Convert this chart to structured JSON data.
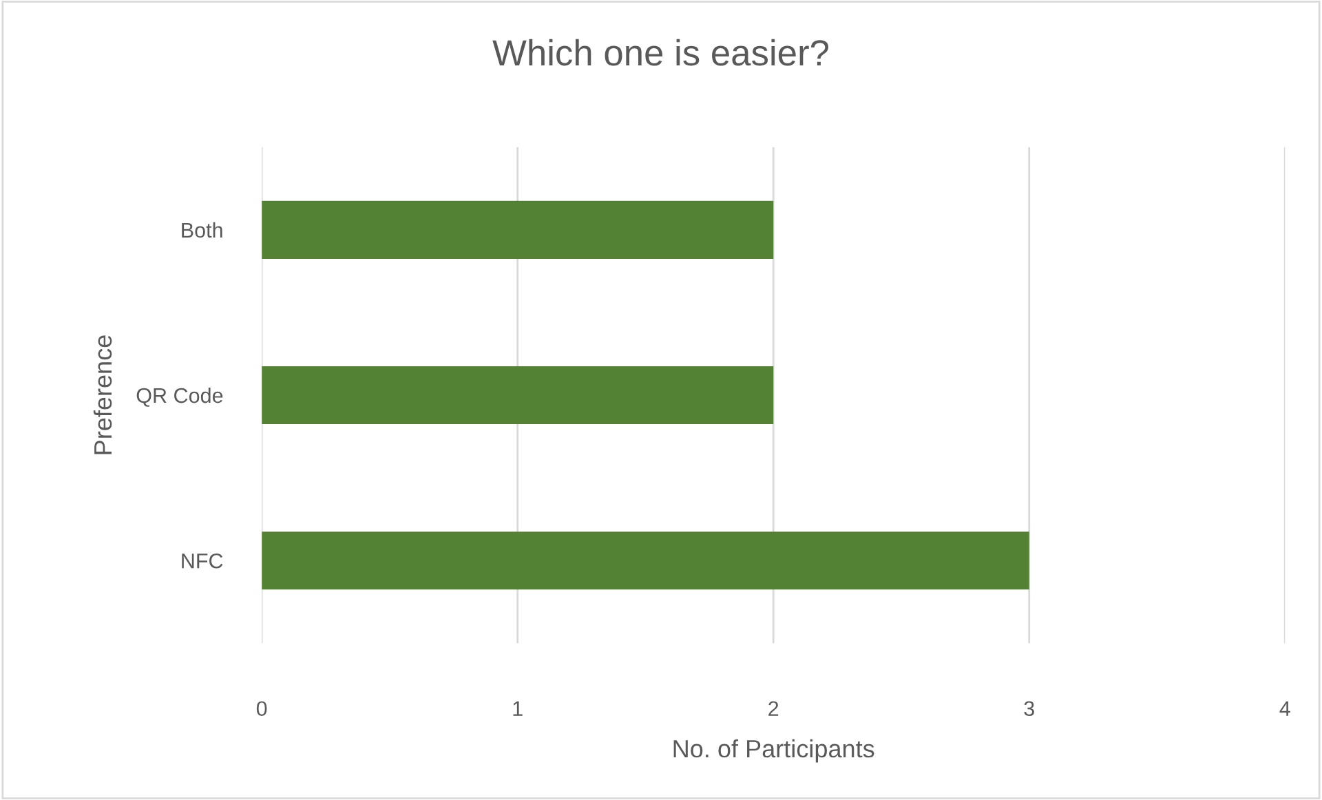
{
  "chart_data": {
    "type": "bar",
    "orientation": "horizontal",
    "title": "Which one is easier?",
    "xlabel": "No. of Participants",
    "ylabel": "Preference",
    "categories": [
      "Both",
      "QR Code",
      "NFC"
    ],
    "values": [
      2,
      2,
      3
    ],
    "color": "#548235",
    "xlim": [
      0,
      4
    ],
    "xticks": [
      0,
      1,
      2,
      3,
      4
    ],
    "grid": "x",
    "legend": false
  }
}
